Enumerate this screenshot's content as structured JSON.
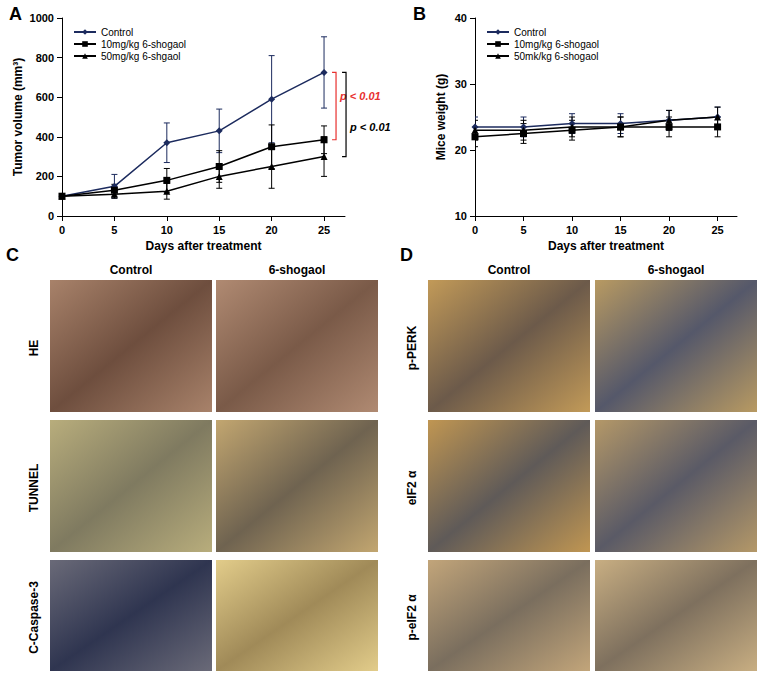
{
  "chart_data": [
    {
      "type": "line",
      "title": "A",
      "xlabel": "Days after treatment",
      "ylabel": "Tumor volume (mm³)",
      "x": [
        0,
        5,
        10,
        15,
        20,
        25
      ],
      "xlim": [
        0,
        27
      ],
      "xticks": [
        0,
        5,
        10,
        15,
        20,
        25
      ],
      "ylim": [
        0,
        1000
      ],
      "yticks": [
        0,
        200,
        400,
        600,
        800,
        1000
      ],
      "grid": false,
      "legend": "upper left",
      "series": [
        {
          "name": "Control",
          "color": "#1c2b5e",
          "marker": "diamond",
          "values": [
            100,
            150,
            370,
            430,
            590,
            725
          ],
          "errors": [
            0,
            60,
            100,
            110,
            220,
            180
          ]
        },
        {
          "name": "10mg/kg 6-shogaol",
          "color": "#000000",
          "marker": "square",
          "values": [
            100,
            130,
            180,
            250,
            350,
            385
          ],
          "errors": [
            0,
            30,
            60,
            80,
            110,
            70
          ]
        },
        {
          "name": "50mg/kg 6-shgaol",
          "color": "#000000",
          "marker": "triangle",
          "values": [
            100,
            110,
            125,
            200,
            250,
            300
          ],
          "errors": [
            0,
            20,
            40,
            60,
            110,
            100
          ]
        }
      ],
      "annotations": [
        {
          "text": "p < 0.01",
          "color": "#e8312f"
        },
        {
          "text": "p < 0.01",
          "color": "#000000"
        }
      ]
    },
    {
      "type": "line",
      "title": "B",
      "xlabel": "Days after treatment",
      "ylabel": "Mice weight (g)",
      "x": [
        0,
        5,
        10,
        15,
        20,
        25
      ],
      "xlim": [
        0,
        27
      ],
      "xticks": [
        0,
        5,
        10,
        15,
        20,
        25
      ],
      "ylim": [
        10,
        40
      ],
      "yticks": [
        10,
        20,
        30,
        40
      ],
      "grid": false,
      "legend": "upper left",
      "series": [
        {
          "name": "Control",
          "color": "#1c2b5e",
          "marker": "diamond",
          "values": [
            23.5,
            23.5,
            24,
            24,
            24.5,
            25
          ],
          "errors": [
            1.5,
            1.5,
            1.5,
            1.5,
            1.5,
            1.5
          ]
        },
        {
          "name": "10mg/kg 6-shogaol",
          "color": "#000000",
          "marker": "square",
          "values": [
            22,
            22.5,
            23,
            23.5,
            23.5,
            23.5
          ],
          "errors": [
            1.5,
            1.5,
            1.5,
            1.5,
            1.5,
            1.5
          ]
        },
        {
          "name": "50mk/kg 6-shogaol",
          "color": "#000000",
          "marker": "triangle",
          "values": [
            23,
            23,
            23.5,
            23.5,
            24.5,
            25
          ],
          "errors": [
            1.5,
            1.5,
            1.5,
            1.5,
            1.5,
            1.5
          ]
        }
      ]
    }
  ],
  "image_panels": [
    {
      "label": "C",
      "columns": [
        "Control",
        "6-shogaol"
      ],
      "rows": [
        "HE",
        "TUNNEL",
        "C-Caspase-3"
      ]
    },
    {
      "label": "D",
      "columns": [
        "Control",
        "6-shogaol"
      ],
      "rows": [
        "p-PERK",
        "eIF2 α",
        "p-eIF2 α"
      ]
    }
  ]
}
